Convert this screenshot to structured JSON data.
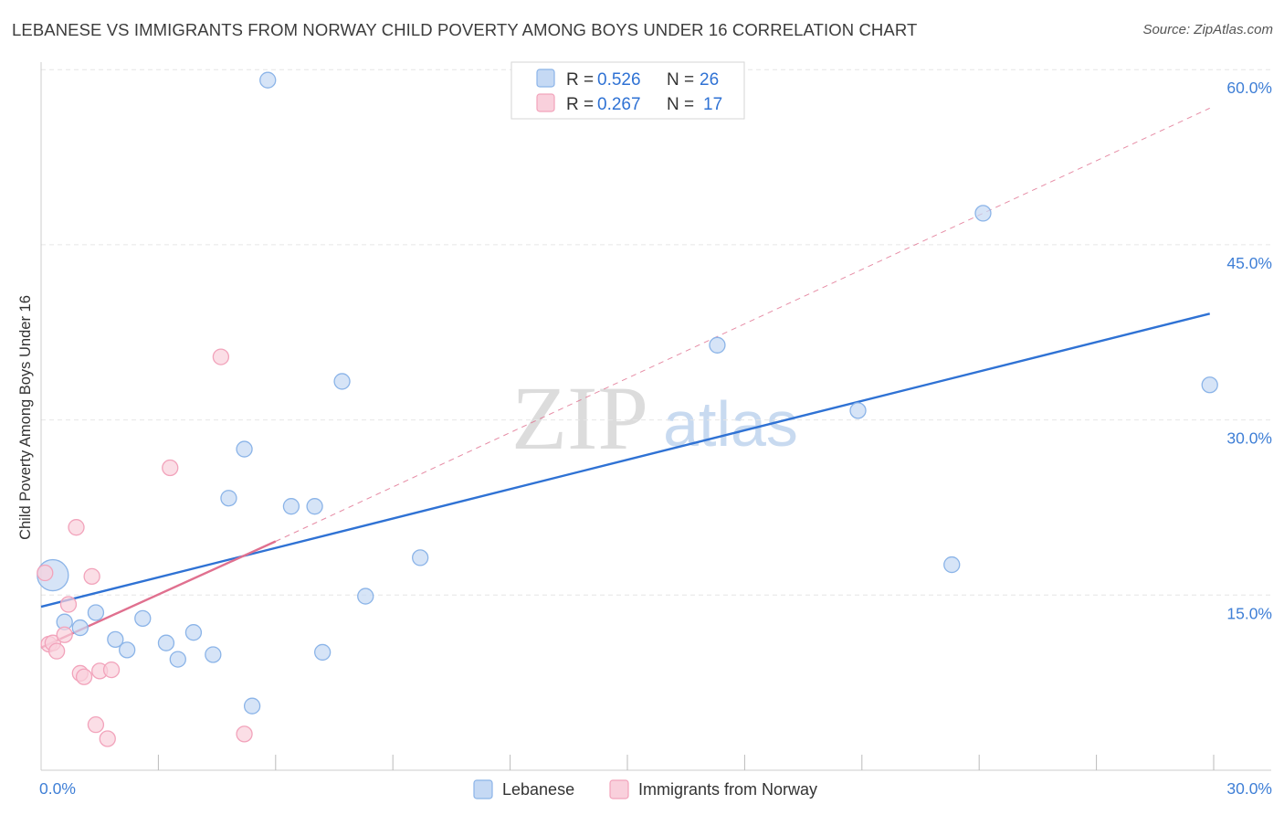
{
  "chart_data": {
    "type": "scatter",
    "title": "LEBANESE VS IMMIGRANTS FROM NORWAY CHILD POVERTY AMONG BOYS UNDER 16 CORRELATION CHART",
    "source": "Source: ZipAtlas.com",
    "xlabel": "",
    "ylabel": "Child Poverty Among Boys Under 16",
    "xlim": [
      0,
      30
    ],
    "ylim": [
      0,
      61
    ],
    "x_tick_labels": [
      {
        "value": 0,
        "label": "0.0%"
      },
      {
        "value": 30,
        "label": "30.0%"
      }
    ],
    "x_minor_ticks": [
      3,
      6,
      9,
      12,
      15,
      18,
      21,
      24,
      27,
      30
    ],
    "y_tick_labels": [
      {
        "value": 15,
        "label": "15.0%"
      },
      {
        "value": 30,
        "label": "30.0%"
      },
      {
        "value": 45,
        "label": "45.0%"
      },
      {
        "value": 60,
        "label": "60.0%"
      }
    ],
    "watermark": {
      "zip": "ZIP",
      "atlas": "atlas"
    },
    "series": [
      {
        "name": "Lebanese",
        "color": "#8bb4e8",
        "fill": "#c5d9f4",
        "line_color": "#2f72d4",
        "R": "0.526",
        "N": "26",
        "points": [
          {
            "x": 0.3,
            "y": 16.7,
            "big": true
          },
          {
            "x": 0.6,
            "y": 12.7
          },
          {
            "x": 1.0,
            "y": 12.2
          },
          {
            "x": 1.4,
            "y": 13.5
          },
          {
            "x": 1.9,
            "y": 11.2
          },
          {
            "x": 2.2,
            "y": 10.3
          },
          {
            "x": 2.6,
            "y": 13.0
          },
          {
            "x": 3.2,
            "y": 10.9
          },
          {
            "x": 3.5,
            "y": 9.5
          },
          {
            "x": 3.9,
            "y": 11.8
          },
          {
            "x": 4.4,
            "y": 9.9
          },
          {
            "x": 4.8,
            "y": 23.3
          },
          {
            "x": 5.2,
            "y": 27.5
          },
          {
            "x": 5.4,
            "y": 5.5
          },
          {
            "x": 5.8,
            "y": 59.1
          },
          {
            "x": 6.4,
            "y": 22.6
          },
          {
            "x": 7.0,
            "y": 22.6
          },
          {
            "x": 7.2,
            "y": 10.1
          },
          {
            "x": 7.7,
            "y": 33.3
          },
          {
            "x": 8.3,
            "y": 14.9
          },
          {
            "x": 9.7,
            "y": 18.2
          },
          {
            "x": 17.3,
            "y": 36.4
          },
          {
            "x": 20.9,
            "y": 30.8
          },
          {
            "x": 23.3,
            "y": 17.6
          },
          {
            "x": 24.1,
            "y": 47.7
          },
          {
            "x": 29.9,
            "y": 33.0
          }
        ],
        "trend": {
          "x0": 0,
          "y0": 14.0,
          "x1": 29.9,
          "y1": 39.1,
          "style": "solid"
        }
      },
      {
        "name": "Immigrants from Norway",
        "color": "#f2a3bb",
        "fill": "#f9d0dc",
        "line_color": "#e0708f",
        "R": "0.267",
        "N": "17",
        "points": [
          {
            "x": 0.1,
            "y": 16.9
          },
          {
            "x": 0.2,
            "y": 10.8
          },
          {
            "x": 0.3,
            "y": 10.9
          },
          {
            "x": 0.4,
            "y": 10.2
          },
          {
            "x": 0.6,
            "y": 11.6
          },
          {
            "x": 0.7,
            "y": 14.2
          },
          {
            "x": 0.9,
            "y": 20.8
          },
          {
            "x": 1.0,
            "y": 8.3
          },
          {
            "x": 1.1,
            "y": 8.0
          },
          {
            "x": 1.3,
            "y": 16.6
          },
          {
            "x": 1.4,
            "y": 3.9
          },
          {
            "x": 1.5,
            "y": 8.5
          },
          {
            "x": 1.7,
            "y": 2.7
          },
          {
            "x": 1.8,
            "y": 8.6
          },
          {
            "x": 3.3,
            "y": 25.9
          },
          {
            "x": 4.6,
            "y": 35.4
          },
          {
            "x": 5.2,
            "y": 3.1
          }
        ],
        "trend": {
          "x0": 0,
          "y0": 10.5,
          "x1": 6.0,
          "y1": 19.6,
          "style": "solid"
        },
        "trend_extended": {
          "x0": 6.0,
          "y0": 19.6,
          "x1": 29.9,
          "y1": 56.7,
          "style": "dashed"
        }
      }
    ],
    "legend": {
      "position": "top-center",
      "r_label": "R = ",
      "n_label": "N = "
    }
  }
}
